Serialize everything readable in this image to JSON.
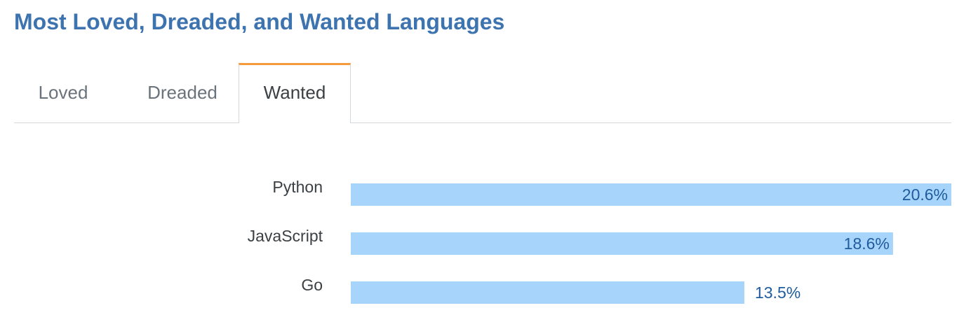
{
  "title": "Most Loved, Dreaded, and Wanted Languages",
  "tabs": [
    {
      "label": "Loved",
      "active": false
    },
    {
      "label": "Dreaded",
      "active": false
    },
    {
      "label": "Wanted",
      "active": true
    }
  ],
  "colors": {
    "title": "#3d74b0",
    "tab_accent": "#f49a3a",
    "bar": "#a7d4fb",
    "value_label": "#1f5c9e",
    "category_label": "#3b4045"
  },
  "chart_data": {
    "type": "bar",
    "orientation": "horizontal",
    "categories": [
      "Python",
      "JavaScript",
      "Go"
    ],
    "values": [
      20.6,
      18.6,
      13.5
    ],
    "value_labels": [
      "20.6%",
      "18.6%",
      "13.5%"
    ],
    "xlim": [
      0,
      20.6
    ],
    "grid": false,
    "legend": "none"
  }
}
